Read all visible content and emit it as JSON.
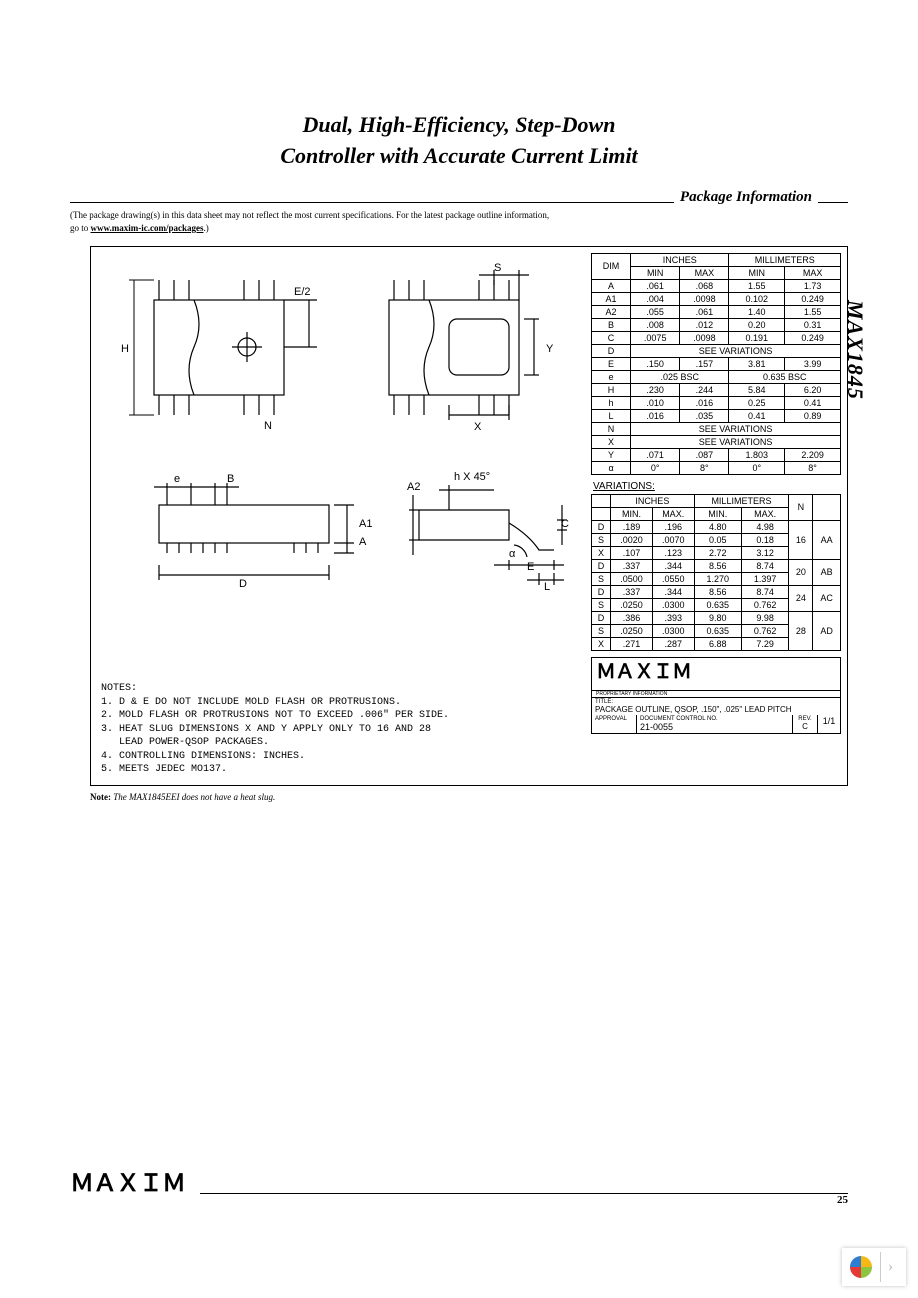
{
  "title_line1": "Dual, High-Efficiency, Step-Down",
  "title_line2": "Controller with Accurate Current Limit",
  "section_label": "Package Information",
  "disclaimer_line1": "(The package drawing(s) in this data sheet may not reflect the most current specifications. For the latest package outline information,",
  "disclaimer_line2_prefix": "go to ",
  "disclaimer_link": "www.maxim-ic.com/packages",
  "disclaimer_line2_suffix": ".)",
  "part_number": "MAX1845",
  "note_prefix": "Note:",
  "note_text": " The MAX1845EEI does not have a heat slug.",
  "page_number": "25",
  "footer_logo": "MAXIM",
  "dim_labels": {
    "E2": "E/2",
    "S": "S",
    "H": "H",
    "N": "N",
    "X": "X",
    "Y": "Y",
    "e": "e",
    "B": "B",
    "A1": "A1",
    "A": "A",
    "D": "D",
    "A2": "A2",
    "hx45": "h X 45°",
    "C": "C",
    "E": "E",
    "L": "L",
    "alpha": "α"
  },
  "dim_table": {
    "header_inches": "INCHES",
    "header_mm": "MILLIMETERS",
    "header_dim": "DIM",
    "header_min": "MIN",
    "header_max": "MAX",
    "rows": [
      {
        "dim": "A",
        "in_min": ".061",
        "in_max": ".068",
        "mm_min": "1.55",
        "mm_max": "1.73"
      },
      {
        "dim": "A1",
        "in_min": ".004",
        "in_max": ".0098",
        "mm_min": "0.102",
        "mm_max": "0.249"
      },
      {
        "dim": "A2",
        "in_min": ".055",
        "in_max": ".061",
        "mm_min": "1.40",
        "mm_max": "1.55"
      },
      {
        "dim": "B",
        "in_min": ".008",
        "in_max": ".012",
        "mm_min": "0.20",
        "mm_max": "0.31"
      },
      {
        "dim": "C",
        "in_min": ".0075",
        "in_max": ".0098",
        "mm_min": "0.191",
        "mm_max": "0.249"
      },
      {
        "dim": "D",
        "see": "SEE VARIATIONS"
      },
      {
        "dim": "E",
        "in_min": ".150",
        "in_max": ".157",
        "mm_min": "3.81",
        "mm_max": "3.99"
      },
      {
        "dim": "e",
        "bsc_in": ".025 BSC",
        "bsc_mm": "0.635 BSC"
      },
      {
        "dim": "H",
        "in_min": ".230",
        "in_max": ".244",
        "mm_min": "5.84",
        "mm_max": "6.20"
      },
      {
        "dim": "h",
        "in_min": ".010",
        "in_max": ".016",
        "mm_min": "0.25",
        "mm_max": "0.41"
      },
      {
        "dim": "L",
        "in_min": ".016",
        "in_max": ".035",
        "mm_min": "0.41",
        "mm_max": "0.89"
      },
      {
        "dim": "N",
        "see": "SEE VARIATIONS"
      },
      {
        "dim": "X",
        "see": "SEE VARIATIONS"
      },
      {
        "dim": "Y",
        "in_min": ".071",
        "in_max": ".087",
        "mm_min": "1.803",
        "mm_max": "2.209"
      },
      {
        "dim": "α",
        "in_min": "0°",
        "in_max": "8°",
        "mm_min": "0°",
        "mm_max": "8°"
      }
    ]
  },
  "variations_label": "VARIATIONS:",
  "var_table": {
    "header_inches": "INCHES",
    "header_mm": "MILLIMETERS",
    "header_min": "MIN.",
    "header_max": "MAX.",
    "header_n": "N",
    "groups": [
      {
        "n": "16",
        "code": "AA",
        "rows": [
          {
            "dim": "D",
            "in_min": ".189",
            "in_max": ".196",
            "mm_min": "4.80",
            "mm_max": "4.98"
          },
          {
            "dim": "S",
            "in_min": ".0020",
            "in_max": ".0070",
            "mm_min": "0.05",
            "mm_max": "0.18"
          },
          {
            "dim": "X",
            "in_min": ".107",
            "in_max": ".123",
            "mm_min": "2.72",
            "mm_max": "3.12"
          }
        ]
      },
      {
        "n": "20",
        "code": "AB",
        "rows": [
          {
            "dim": "D",
            "in_min": ".337",
            "in_max": ".344",
            "mm_min": "8.56",
            "mm_max": "8.74"
          },
          {
            "dim": "S",
            "in_min": ".0500",
            "in_max": ".0550",
            "mm_min": "1.270",
            "mm_max": "1.397"
          }
        ]
      },
      {
        "n": "24",
        "code": "AC",
        "rows": [
          {
            "dim": "D",
            "in_min": ".337",
            "in_max": ".344",
            "mm_min": "8.56",
            "mm_max": "8.74"
          },
          {
            "dim": "S",
            "in_min": ".0250",
            "in_max": ".0300",
            "mm_min": "0.635",
            "mm_max": "0.762"
          }
        ]
      },
      {
        "n": "28",
        "code": "AD",
        "rows": [
          {
            "dim": "D",
            "in_min": ".386",
            "in_max": ".393",
            "mm_min": "9.80",
            "mm_max": "9.98"
          },
          {
            "dim": "S",
            "in_min": ".0250",
            "in_max": ".0300",
            "mm_min": "0.635",
            "mm_max": "0.762"
          },
          {
            "dim": "X",
            "in_min": ".271",
            "in_max": ".287",
            "mm_min": "6.88",
            "mm_max": "7.29"
          }
        ]
      }
    ]
  },
  "notes_heading": "NOTES:",
  "notes": [
    "1. D & E DO NOT INCLUDE MOLD FLASH OR PROTRUSIONS.",
    "2. MOLD FLASH OR PROTRUSIONS NOT TO EXCEED .006\" PER SIDE.",
    "3. HEAT SLUG DIMENSIONS X AND Y APPLY ONLY TO 16 AND 28",
    "   LEAD POWER-QSOP PACKAGES.",
    "4. CONTROLLING DIMENSIONS: INCHES.",
    "5. MEETS JEDEC MO137."
  ],
  "title_block": {
    "logo": "MAXIM",
    "proprietary": "PROPRIETARY INFORMATION",
    "title_label": "TITLE:",
    "title_text": "PACKAGE OUTLINE, QSOP, .150\", .025\" LEAD PITCH",
    "approval_label": "APPROVAL",
    "doc_label": "DOCUMENT CONTROL NO.",
    "doc_no": "21-0055",
    "rev_label": "REV.",
    "rev": "C",
    "sheet": "1/1"
  },
  "pinwheel_colors": [
    "#f5b815",
    "#8cc63f",
    "#e53935",
    "#2e7dd1"
  ]
}
